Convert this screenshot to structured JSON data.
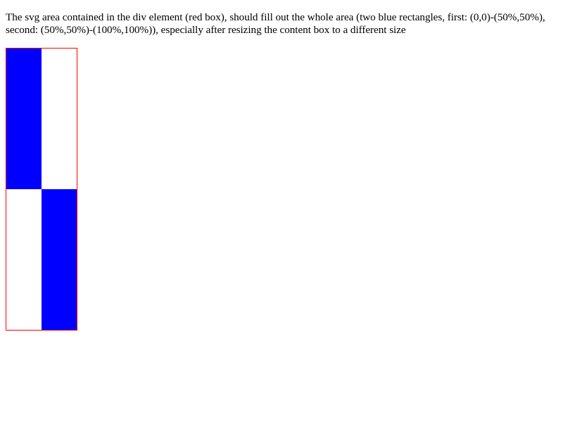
{
  "description": {
    "text": "The svg area contained in the div element (red box), should fill out the whole area (two blue rectangles, first: (0,0)-(50%,50%), second: (50%,50%)-(100%,100%)), especially after resizing the content box to a different size"
  },
  "colors": {
    "box_border": "#ff0000",
    "rect_fill": "#0000ff",
    "background": "#ffffff"
  }
}
